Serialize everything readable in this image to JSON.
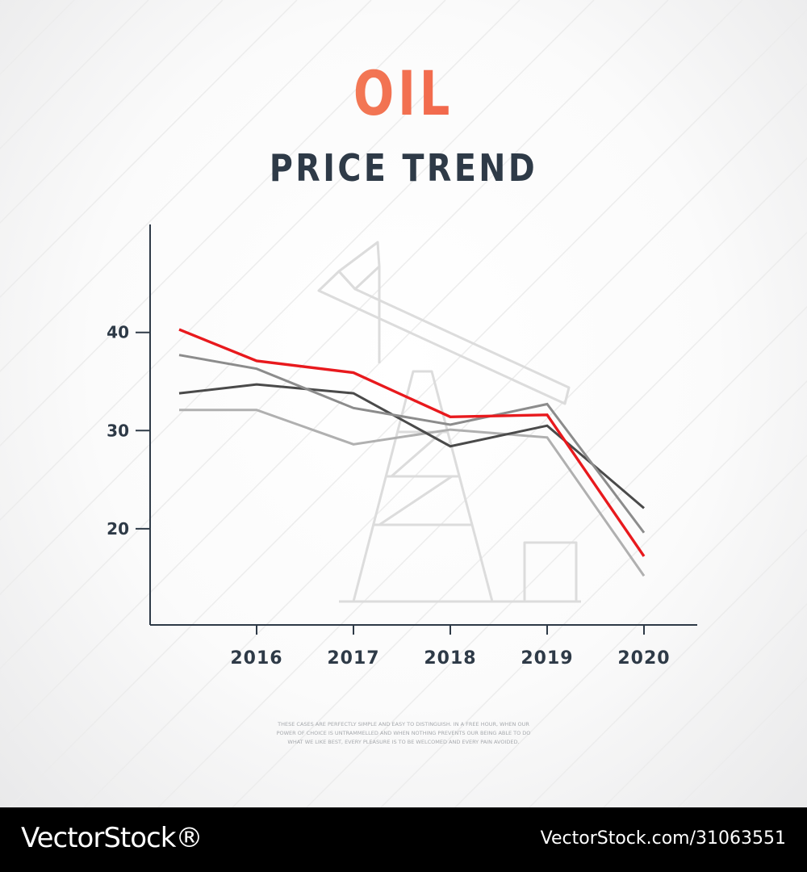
{
  "title": "OIL",
  "subtitle": "PRICE TREND",
  "fine_print": "THESE CASES ARE PERFECTLY SIMPLE AND EASY TO DISTINGUISH. IN A FREE HOUR, WHEN OUR POWER OF CHOICE IS UNTRAMMELLED AND WHEN NOTHING PREVENTS OUR BEING ABLE TO DO WHAT WE LIKE BEST, EVERY PLEASURE IS TO BE WELCOMED AND EVERY PAIN AVOIDED.",
  "watermark": "VectorStock",
  "footer": {
    "brand": "VectorStock®",
    "image_id": "VectorStock.com/31063551"
  },
  "colors": {
    "accent": "#e8191d",
    "text_dark": "#2e3a47",
    "axis": "#2e3a47",
    "series": [
      "#e8191d",
      "#8c8c8c",
      "#4a4a4a",
      "#b0b0b0"
    ]
  },
  "chart_data": {
    "type": "line",
    "title": "OIL",
    "subtitle": "PRICE TREND",
    "xlabel": "",
    "ylabel": "",
    "x": [
      2015.2,
      2016,
      2017,
      2018,
      2019,
      2020
    ],
    "xticks": [
      2016,
      2017,
      2018,
      2019,
      2020
    ],
    "yticks": [
      20,
      30,
      40
    ],
    "xlim": [
      2014.9,
      2020.55
    ],
    "ylim": [
      10.2,
      51
    ],
    "grid": false,
    "legend": "none",
    "series": [
      {
        "color": "#e8191d",
        "values": [
          40.3,
          37.1,
          35.9,
          31.4,
          31.6,
          17.2
        ]
      },
      {
        "color": "#8c8c8c",
        "values": [
          37.7,
          36.3,
          32.3,
          30.6,
          32.7,
          19.6
        ]
      },
      {
        "color": "#4a4a4a",
        "values": [
          33.8,
          34.7,
          33.8,
          28.4,
          30.5,
          22.1
        ]
      },
      {
        "color": "#b0b0b0",
        "values": [
          32.1,
          32.1,
          28.6,
          30.1,
          29.3,
          15.2
        ]
      }
    ]
  }
}
